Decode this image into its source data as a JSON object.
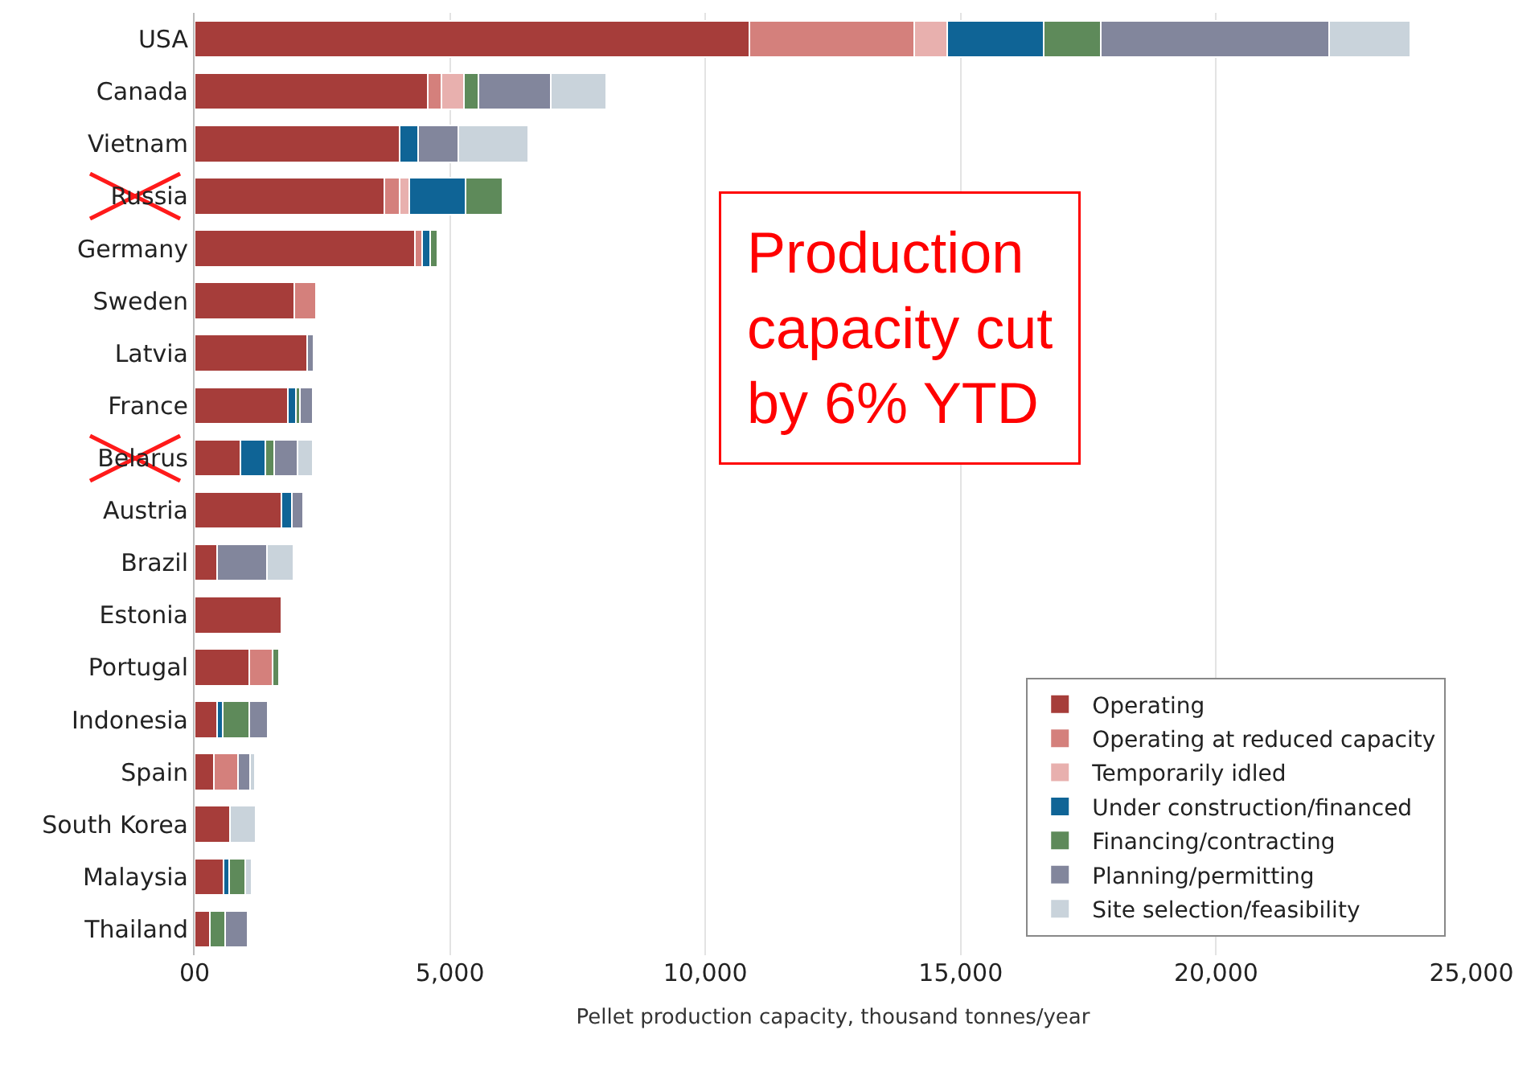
{
  "chart_data": {
    "type": "bar",
    "orientation": "horizontal",
    "stacked": true,
    "categories": [
      "USA",
      "Canada",
      "Vietnam",
      "Russia",
      "Germany",
      "Sweden",
      "Latvia",
      "France",
      "Belarus",
      "Austria",
      "Brazil",
      "Estonia",
      "Portugal",
      "Indonesia",
      "Spain",
      "South Korea",
      "Malaysia",
      "Thailand"
    ],
    "series": [
      {
        "name": "Operating",
        "color": "#a63d3a",
        "values": [
          10860,
          4560,
          4020,
          3720,
          4320,
          1950,
          2200,
          1830,
          900,
          1700,
          440,
          1700,
          1070,
          440,
          380,
          700,
          560,
          300
        ]
      },
      {
        "name": "Operating at reduced capacity",
        "color": "#d4807c",
        "values": [
          3230,
          280,
          null,
          300,
          130,
          430,
          null,
          null,
          null,
          null,
          null,
          null,
          460,
          null,
          470,
          null,
          null,
          null
        ]
      },
      {
        "name": "Temporarily idled",
        "color": "#e8b0ae",
        "values": [
          640,
          440,
          null,
          180,
          null,
          null,
          null,
          null,
          null,
          null,
          null,
          null,
          null,
          null,
          null,
          null,
          null,
          null
        ]
      },
      {
        "name": "Under construction/financed",
        "color": "#0f6496",
        "values": [
          1890,
          null,
          350,
          1100,
          160,
          null,
          null,
          150,
          480,
          200,
          null,
          null,
          null,
          110,
          null,
          null,
          110,
          null
        ]
      },
      {
        "name": "Financing/contracting",
        "color": "#5e8a5a",
        "values": [
          1130,
          280,
          null,
          730,
          150,
          null,
          null,
          80,
          180,
          null,
          null,
          null,
          120,
          520,
          null,
          null,
          320,
          300
        ]
      },
      {
        "name": "Planning/permitting",
        "color": "#82869c",
        "values": [
          4460,
          1420,
          800,
          null,
          null,
          null,
          130,
          250,
          450,
          220,
          970,
          null,
          null,
          360,
          240,
          null,
          null,
          440
        ]
      },
      {
        "name": "Site selection/feasibility",
        "color": "#c9d3db",
        "values": [
          1590,
          1080,
          1370,
          null,
          null,
          null,
          null,
          null,
          300,
          null,
          520,
          null,
          null,
          null,
          90,
          490,
          120,
          null
        ]
      }
    ],
    "xlim": [
      0,
      25000
    ],
    "xticks": [
      {
        "value": 0,
        "label": "00"
      },
      {
        "value": 5000,
        "label": "5,000"
      },
      {
        "value": 10000,
        "label": "10,000"
      },
      {
        "value": 15000,
        "label": "15,000"
      },
      {
        "value": 20000,
        "label": "20,000"
      },
      {
        "value": 25000,
        "label": "25,000"
      }
    ],
    "xlabel": "Pellet production capacity, thousand tonnes/year",
    "grid": "x",
    "legend": "bottom right",
    "annotations": [
      "Production capacity cut by 6% YTD"
    ]
  }
}
